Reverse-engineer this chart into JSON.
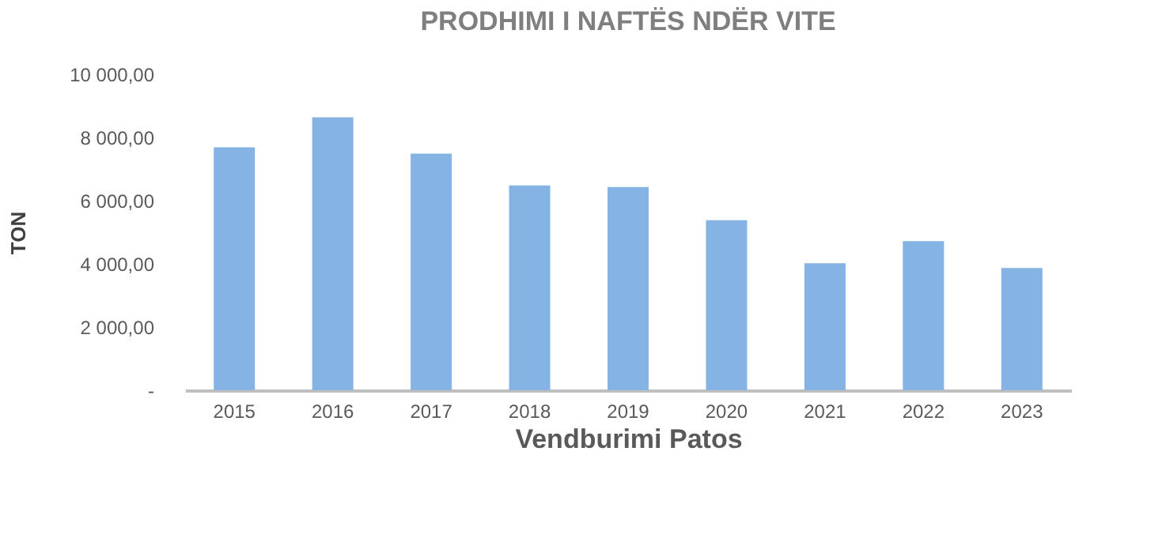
{
  "chart_data": {
    "type": "bar",
    "title": "PRODHIMI I NAFTËS NDËR VITE",
    "xlabel": "Vendburimi Patos",
    "ylabel": "TON",
    "categories": [
      "2015",
      "2016",
      "2017",
      "2018",
      "2019",
      "2020",
      "2021",
      "2022",
      "2023"
    ],
    "values": [
      7690,
      8640,
      7490,
      6480,
      6430,
      5380,
      4020,
      4720,
      3870
    ],
    "color": "#85b3e3",
    "ylim": [
      0,
      10000
    ],
    "yticks": [
      {
        "value": 0,
        "label": "-"
      },
      {
        "value": 2000,
        "label": "2 000,00"
      },
      {
        "value": 4000,
        "label": "4 000,00"
      },
      {
        "value": 6000,
        "label": "6 000,00"
      },
      {
        "value": 8000,
        "label": "8 000,00"
      },
      {
        "value": 10000,
        "label": "10 000,00"
      }
    ],
    "grid": false
  }
}
